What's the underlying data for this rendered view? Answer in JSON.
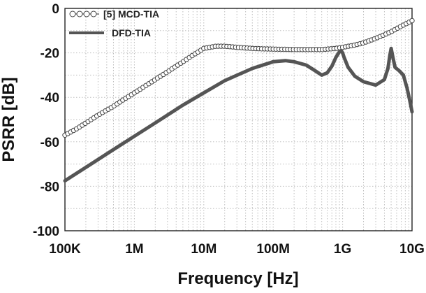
{
  "chart_data": {
    "type": "line",
    "xscale": "log",
    "xlabel": "Frequency [Hz]",
    "ylabel": "PSRR [dB]",
    "xlim": [
      100000,
      10000000000
    ],
    "ylim": [
      -100,
      0
    ],
    "x_tick_values": [
      100000,
      1000000,
      10000000,
      100000000,
      1000000000,
      10000000000
    ],
    "x_tick_labels": [
      "100K",
      "1M",
      "10M",
      "100M",
      "1G",
      "10G"
    ],
    "y_ticks": [
      0,
      -20,
      -40,
      -60,
      -80,
      -100
    ],
    "grid": true,
    "legend_position": "top-left",
    "series": [
      {
        "name": "[5] MCD-TIA",
        "color": "#555555",
        "marker": "open-circle",
        "x": [
          100000,
          150000,
          200000,
          300000,
          500000,
          700000,
          1000000,
          1500000,
          2000000,
          3000000,
          5000000,
          7000000,
          10000000,
          15000000,
          20000000,
          30000000,
          50000000,
          70000000,
          100000000,
          200000000,
          500000000,
          800000000,
          1000000000,
          1500000000,
          2000000000,
          3000000000,
          5000000000,
          7000000000,
          10000000000
        ],
        "y": [
          -57,
          -54,
          -51.5,
          -48,
          -44,
          -41,
          -38,
          -34.5,
          -32,
          -28.5,
          -24,
          -21,
          -18,
          -17,
          -17,
          -17.5,
          -18,
          -18.2,
          -18.3,
          -18.5,
          -18.5,
          -18,
          -17.5,
          -16.5,
          -15.5,
          -13.5,
          -10.5,
          -8,
          -5.5
        ]
      },
      {
        "name": "DFD-TIA",
        "color": "#555555",
        "marker": "none",
        "x": [
          100000,
          200000,
          500000,
          1000000,
          2000000,
          5000000,
          10000000,
          20000000,
          50000000,
          100000000,
          150000000,
          200000000,
          300000000,
          400000000,
          500000000,
          600000000,
          700000000,
          800000000,
          900000000,
          950000000,
          1000000000,
          1050000000,
          1200000000,
          1500000000,
          2000000000,
          3000000000,
          4000000000,
          4500000000,
          4800000000,
          5000000000,
          5300000000,
          5700000000,
          6500000000,
          7500000000,
          8500000000,
          9500000000,
          10000000000
        ],
        "y": [
          -77.5,
          -71.5,
          -63.5,
          -57.5,
          -51.5,
          -43.5,
          -38,
          -32.5,
          -27,
          -24,
          -23.5,
          -24,
          -25.5,
          -28,
          -30,
          -29,
          -26,
          -22,
          -19.5,
          -19,
          -20,
          -22,
          -26.5,
          -30.5,
          -33,
          -34.5,
          -32,
          -27,
          -21,
          -18,
          -22,
          -26.5,
          -28,
          -30,
          -36,
          -43,
          -46.5
        ]
      }
    ]
  }
}
